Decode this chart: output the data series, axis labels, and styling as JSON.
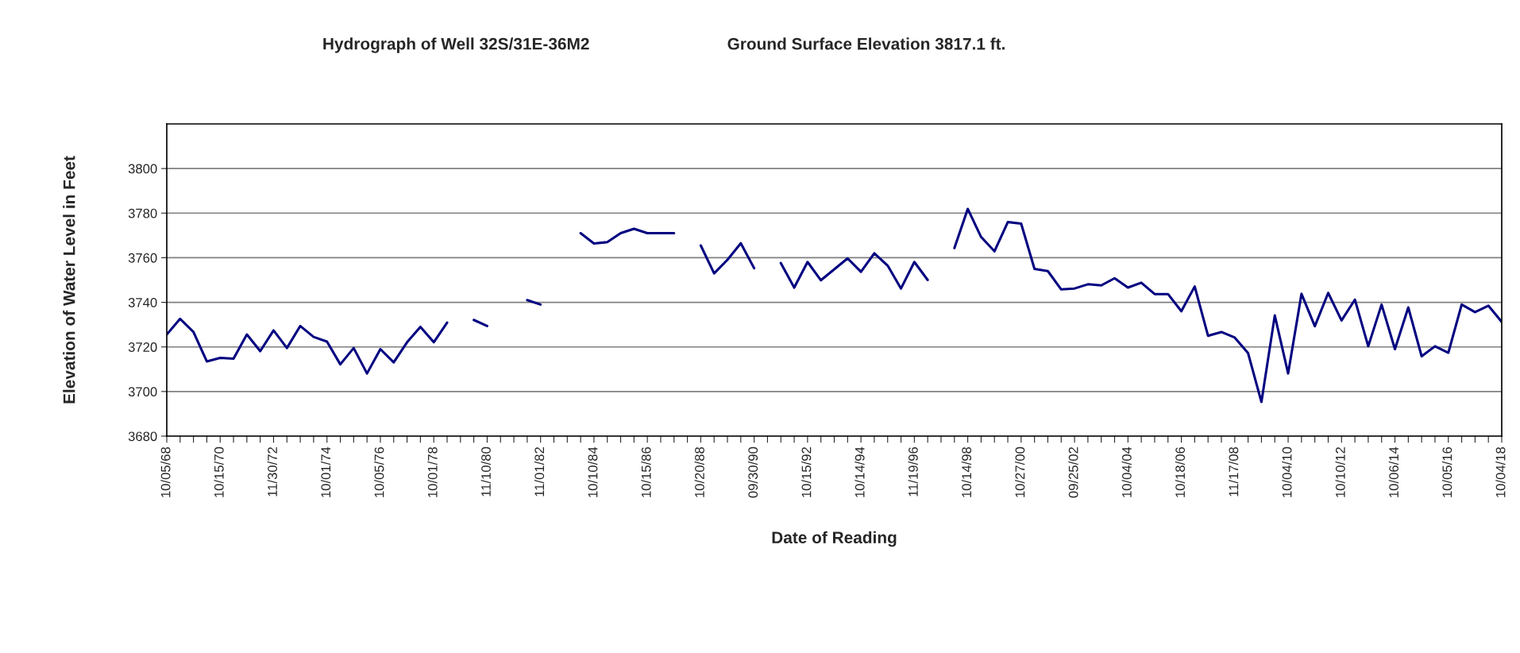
{
  "chart_data": {
    "type": "line",
    "title": "Hydrograph of Well 32S/31E-36M2",
    "subtitle": "Ground Surface Elevation 3817.1 ft.",
    "xlabel": "Date of Reading",
    "ylabel": "Elevation of Water Level in Feet",
    "categories": [
      "10/05/68",
      null,
      null,
      null,
      "10/15/70",
      null,
      null,
      null,
      "11/30/72",
      null,
      null,
      null,
      "10/01/74",
      null,
      null,
      null,
      "10/05/76",
      null,
      null,
      null,
      "10/01/78",
      null,
      null,
      null,
      "11/10/80",
      null,
      null,
      null,
      "11/01/82",
      null,
      null,
      null,
      "10/10/84",
      null,
      null,
      null,
      "10/15/86",
      null,
      null,
      null,
      "10/20/88",
      null,
      null,
      null,
      "09/30/90",
      null,
      null,
      null,
      "10/15/92",
      null,
      null,
      null,
      "10/14/94",
      null,
      null,
      null,
      "11/19/96",
      null,
      null,
      null,
      "10/14/98",
      null,
      null,
      null,
      "10/27/00",
      null,
      null,
      null,
      "09/25/02",
      null,
      null,
      null,
      "10/04/04",
      null,
      null,
      null,
      "10/18/06",
      null,
      null,
      null,
      "11/17/08",
      null,
      null,
      null,
      "10/04/10",
      null,
      null,
      null,
      "10/10/12",
      null,
      null,
      null,
      "10/06/14",
      null,
      null,
      null,
      "10/05/16",
      null,
      null,
      null,
      "10/04/18"
    ],
    "series": [
      {
        "color": "#000080",
        "values": [
          3725.6,
          3732.6,
          3726.7,
          3713.5,
          3715.1,
          3714.7,
          3725.6,
          3718.1,
          3727.4,
          3719.5,
          3729.4,
          3724.5,
          3722.4,
          3712.2,
          3719.5,
          3708.1,
          3719.0,
          3713.1,
          3722.1,
          3729.0,
          3722.1,
          3730.9,
          null,
          3732.1,
          3729.4,
          null,
          null,
          3741.0,
          3739.0,
          null,
          null,
          3771.0,
          3766.4,
          3767.0,
          3771.0,
          3773.0,
          3771.0,
          3771.0,
          3771.0,
          null,
          3765.5,
          3753.0,
          3759.1,
          3766.5,
          3755.3,
          null,
          3757.6,
          3746.6,
          3758.1,
          3749.9,
          3754.8,
          3759.7,
          3753.7,
          3762.0,
          3756.5,
          3746.2,
          3758.1,
          3750.0,
          null,
          3764.3,
          3781.9,
          3769.3,
          3762.9,
          3776.0,
          3775.3,
          3755.0,
          3754.0,
          3745.8,
          3746.2,
          3748.1,
          3747.6,
          3750.8,
          3746.6,
          3748.8,
          3743.7,
          3743.7,
          3736.0,
          3747.1,
          3725.0,
          3726.7,
          3724.2,
          3717.2,
          3695.3,
          3734.1,
          3708.1,
          3743.8,
          3729.3,
          3744.2,
          3731.9,
          3741.2,
          3720.3,
          3739.0,
          3719.0,
          3737.7,
          3715.8,
          3720.3,
          3717.4,
          3739.0,
          3735.6,
          3738.5,
          3731.2
        ]
      }
    ],
    "ylim": [
      3680,
      3820
    ],
    "yticks": [
      3680,
      3700,
      3720,
      3740,
      3760,
      3780,
      3800
    ],
    "grid": "y",
    "legend": false,
    "marker": "none",
    "line_style": "solid"
  }
}
